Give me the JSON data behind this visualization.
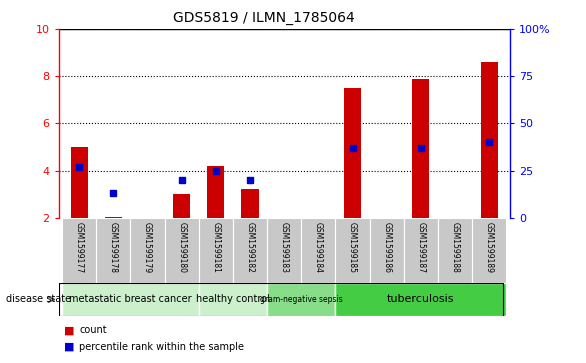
{
  "title": "GDS5819 / ILMN_1785064",
  "samples": [
    "GSM1599177",
    "GSM1599178",
    "GSM1599179",
    "GSM1599180",
    "GSM1599181",
    "GSM1599182",
    "GSM1599183",
    "GSM1599184",
    "GSM1599185",
    "GSM1599186",
    "GSM1599187",
    "GSM1599188",
    "GSM1599189"
  ],
  "count": [
    5.0,
    2.05,
    2.0,
    3.0,
    4.2,
    3.2,
    2.0,
    2.0,
    7.5,
    2.0,
    7.9,
    2.0,
    8.6
  ],
  "percentile": [
    27,
    13,
    null,
    20,
    25,
    20,
    null,
    null,
    37,
    null,
    37,
    null,
    40
  ],
  "ylim_left": [
    2,
    10
  ],
  "ylim_right": [
    0,
    100
  ],
  "yticks_left": [
    2,
    4,
    6,
    8,
    10
  ],
  "yticks_right": [
    0,
    25,
    50,
    75,
    100
  ],
  "groups": [
    {
      "label": "metastatic breast cancer",
      "start": 0,
      "end": 4,
      "color": "#ccf0cc"
    },
    {
      "label": "healthy control",
      "start": 4,
      "end": 6,
      "color": "#ccf0cc"
    },
    {
      "label": "gram-negative sepsis",
      "start": 6,
      "end": 8,
      "color": "#88dd88"
    },
    {
      "label": "tuberculosis",
      "start": 8,
      "end": 13,
      "color": "#44cc44"
    }
  ],
  "bar_color": "#cc0000",
  "dot_color": "#0000cc",
  "bar_width": 0.5,
  "background_color": "#ffffff",
  "tick_bg_color": "#c8c8c8",
  "legend_count_color": "#cc0000",
  "legend_pct_color": "#0000cc",
  "disease_label": "disease state"
}
